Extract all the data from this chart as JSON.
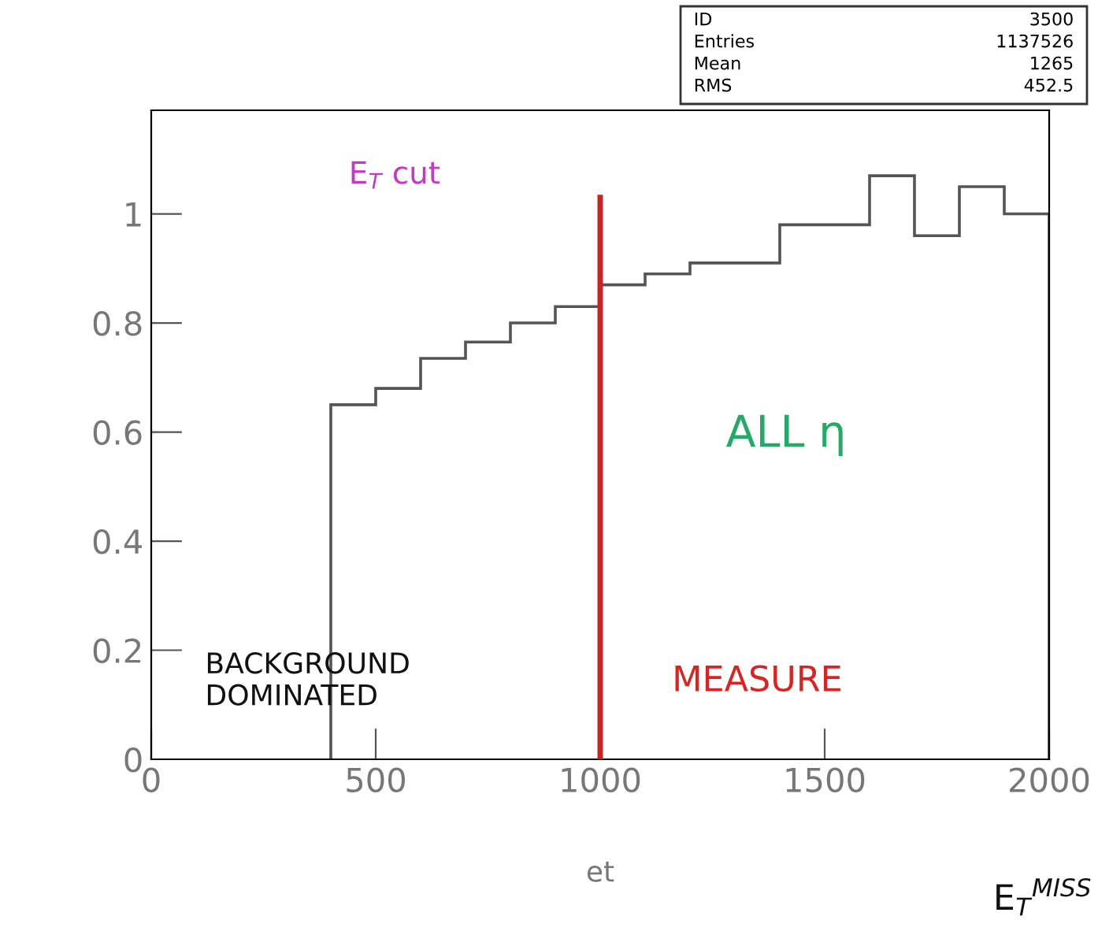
{
  "chart_data": {
    "type": "histogram",
    "xlabel": "et",
    "bins": [
      400,
      500,
      600,
      700,
      800,
      900,
      1000,
      1100,
      1200,
      1300,
      1400,
      1500,
      1600,
      1700,
      1800,
      1900,
      2000
    ],
    "values": [
      0.65,
      0.68,
      0.735,
      0.765,
      0.8,
      0.83,
      0.87,
      0.89,
      0.91,
      0.91,
      0.98,
      0.98,
      1.07,
      0.96,
      1.05,
      1.0
    ],
    "color": "#555555",
    "xlim": [
      0,
      2000
    ],
    "xticks": [
      0,
      500,
      1000,
      1500,
      2000
    ],
    "ylim": [
      0,
      1.19
    ],
    "yticks": [
      0,
      0.2,
      0.4,
      0.6,
      0.8,
      1
    ],
    "ref_lines": [
      {
        "axis": "x",
        "value": 1000,
        "color": "#cc2222"
      }
    ],
    "annotations": [
      "E$_{T}$ cut",
      "ALL η",
      "BACKGROUND DOMINATED",
      "MEASURE",
      "E$_{T}$$^{MISS}$",
      "ID",
      "3500",
      "Entries",
      "1137526",
      "Mean",
      "1265",
      "RMS",
      "452.5"
    ],
    "grid": false
  }
}
